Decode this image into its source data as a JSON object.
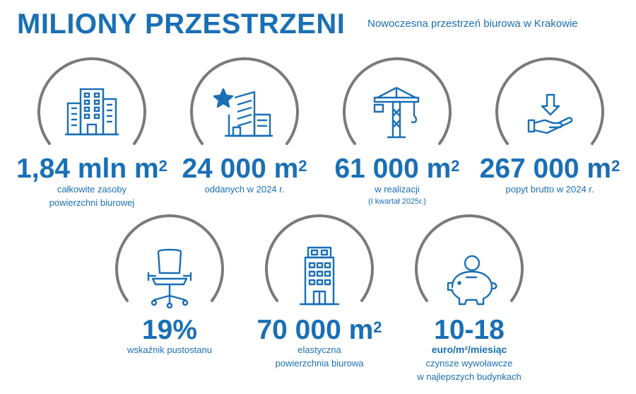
{
  "header": {
    "title": "MILIONY PRZESTRZENI",
    "subtitle": "Nowoczesna przestrzeń biurowa w Krakowie"
  },
  "colors": {
    "accent": "#1a6fb5",
    "arc": "#7a7a7a"
  },
  "stats": [
    {
      "icon": "office-buildings-icon",
      "value": "1,84 mln m",
      "sup": "2",
      "line1": "całkowite zasoby",
      "line2": "powierzchni biurowej"
    },
    {
      "icon": "new-building-star-icon",
      "value": "24 000 m",
      "sup": "2",
      "line1": "oddanych w 2024 r."
    },
    {
      "icon": "construction-crane-icon",
      "value": "61 000 m",
      "sup": "2",
      "line1": "w realizacji",
      "line2": "(I kwartał 2025r.)"
    },
    {
      "icon": "hand-demand-arrow-icon",
      "value": "267 000 m",
      "sup": "2",
      "line1": "popyt brutto w 2024 r."
    },
    {
      "icon": "office-chair-icon",
      "value": "19%",
      "line1": "wskaźnik pustostanu"
    },
    {
      "icon": "office-tower-icon",
      "value": "70 000 m",
      "sup": "2",
      "line1": "elastyczna",
      "line2": "powierzchnia biurowa"
    },
    {
      "icon": "piggy-bank-icon",
      "value": "10-18",
      "unit": "euro/m²/miesiąc",
      "line1": "czynsze wywoławcze",
      "line2": "w najlepszych budynkach"
    }
  ]
}
